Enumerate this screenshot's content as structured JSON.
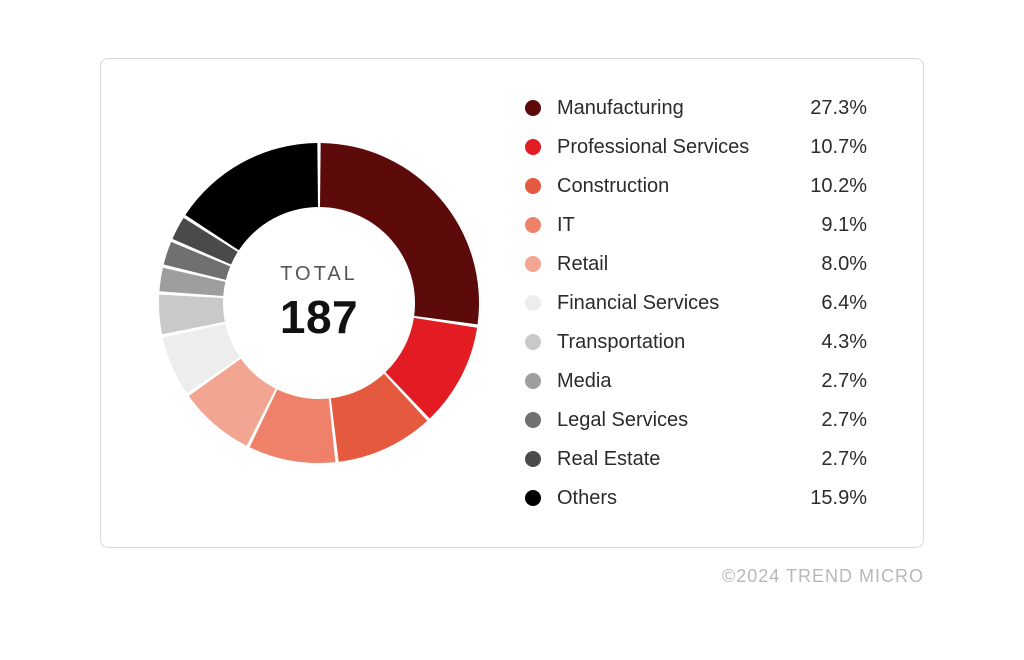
{
  "chart": {
    "type": "donut",
    "total_caption": "TOTAL",
    "total_value": "187",
    "background_color": "#ffffff",
    "outer_radius": 160,
    "inner_radius": 96,
    "start_angle_deg": 0,
    "gap_deg": 1.2,
    "segments": [
      {
        "label": "Manufacturing",
        "pct": 27.3,
        "pct_text": "27.3%",
        "color": "#5C0A0A"
      },
      {
        "label": "Professional Services",
        "pct": 10.7,
        "pct_text": "10.7%",
        "color": "#E31B23"
      },
      {
        "label": "Construction",
        "pct": 10.2,
        "pct_text": "10.2%",
        "color": "#E55A3F"
      },
      {
        "label": "IT",
        "pct": 9.1,
        "pct_text": "9.1%",
        "color": "#EF816A"
      },
      {
        "label": "Retail",
        "pct": 8.0,
        "pct_text": "8.0%",
        "color": "#F2A591"
      },
      {
        "label": "Financial Services",
        "pct": 6.4,
        "pct_text": "6.4%",
        "color": "#EDEDED"
      },
      {
        "label": "Transportation",
        "pct": 4.3,
        "pct_text": "4.3%",
        "color": "#C9C9C9"
      },
      {
        "label": "Media",
        "pct": 2.7,
        "pct_text": "2.7%",
        "color": "#9E9E9E"
      },
      {
        "label": "Legal Services",
        "pct": 2.7,
        "pct_text": "2.7%",
        "color": "#707070"
      },
      {
        "label": "Real Estate",
        "pct": 2.7,
        "pct_text": "2.7%",
        "color": "#4A4A4A"
      },
      {
        "label": "Others",
        "pct": 15.9,
        "pct_text": "15.9%",
        "color": "#000000"
      }
    ]
  },
  "footer_text": "©2024 TREND MICRO",
  "card_border_color": "#DADADA",
  "legend_font_size": 20,
  "total_caption_font_size": 20,
  "total_value_font_size": 46,
  "footer_color": "#B8B8B8"
}
